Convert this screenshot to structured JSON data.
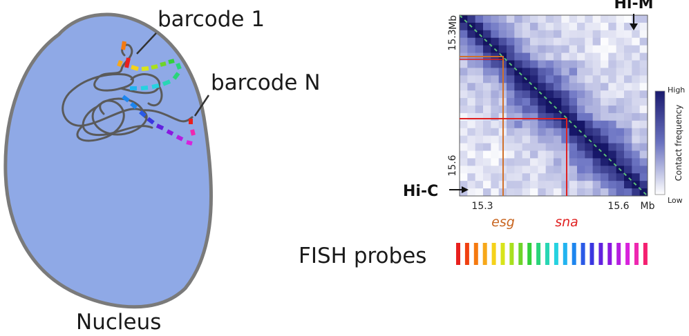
{
  "labels": {
    "barcode_first": "barcode 1",
    "barcode_last": "barcode N",
    "nucleus": "Nucleus",
    "hi_m": "Hi-M",
    "hi_c": "Hi-C",
    "fish_probes": "FISH probes",
    "gene_esg": "esg",
    "gene_sna": "sna"
  },
  "heatmap": {
    "axis_unit": "Mb",
    "x_ticks": [
      "15.3",
      "15.6"
    ],
    "y_ticks": [
      "15.3",
      "15.6"
    ],
    "colorbar_label": "Contact frequency",
    "colorbar_high": "High",
    "colorbar_low": "Low",
    "colors": {
      "low": "#ffffff",
      "high": "#1a1a6e",
      "mid": "#6a72c0"
    }
  },
  "colors": {
    "nucleus_fill": "#8fa9e6",
    "nucleus_stroke": "#7a7a7a",
    "chromatin": "#5a5a5a",
    "esg_line": "#d0702a",
    "sna_line": "#e02020",
    "esg_text": "#c8641e",
    "sna_text": "#e02020",
    "diagonal_dash": "#5bbf7a"
  },
  "probe_colors": [
    "#e8201e",
    "#f04010",
    "#f57a10",
    "#f7a81a",
    "#f5d21a",
    "#d8e41a",
    "#a8e01e",
    "#6ed42a",
    "#34d03a",
    "#2ad47a",
    "#28d6b4",
    "#26d2e0",
    "#22b4f0",
    "#1e86ee",
    "#2a5ae6",
    "#3a36e0",
    "#6222de",
    "#8a18e0",
    "#b41ee0",
    "#d822dc",
    "#ee28b0",
    "#f42070"
  ]
}
